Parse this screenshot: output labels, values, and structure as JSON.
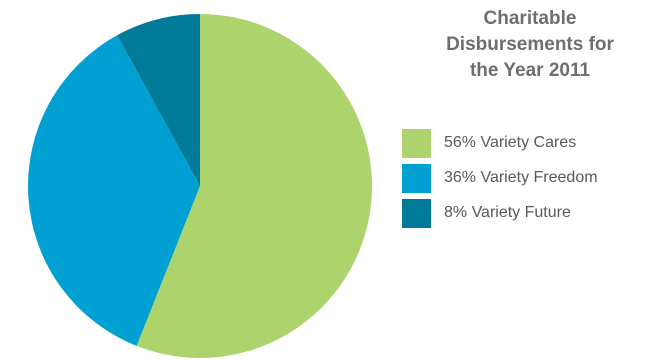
{
  "chart_data": {
    "type": "pie",
    "title_lines": [
      "Charitable",
      "Disbursements for",
      "the Year 2011"
    ],
    "title": "Charitable Disbursements for the Year 2011",
    "slices": [
      {
        "label": "Variety Cares",
        "percent": 56,
        "legend_text": "56% Variety Cares",
        "color": "#acd36c"
      },
      {
        "label": "Variety Freedom",
        "percent": 36,
        "legend_text": "36% Variety Freedom",
        "color": "#00a0d2"
      },
      {
        "label": "Variety Future",
        "percent": 8,
        "legend_text": "8% Variety Future",
        "color": "#007a99"
      }
    ],
    "start": "top, clockwise",
    "legend_position": "right"
  }
}
